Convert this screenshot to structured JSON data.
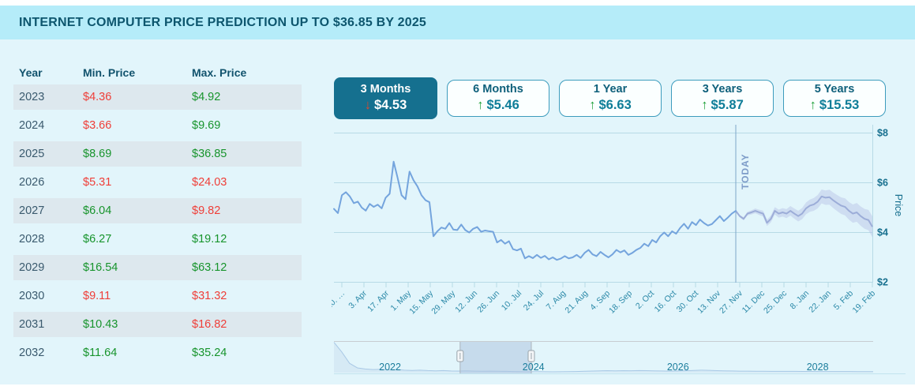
{
  "header": {
    "title": "INTERNET COMPUTER PRICE PREDICTION UP TO $36.85 BY 2025"
  },
  "table": {
    "columns": [
      "Year",
      "Min. Price",
      "Max. Price"
    ],
    "rows": [
      {
        "year": "2023",
        "min": "$4.36",
        "min_color": "red",
        "max": "$4.92",
        "max_color": "green"
      },
      {
        "year": "2024",
        "min": "$3.66",
        "min_color": "red",
        "max": "$9.69",
        "max_color": "green"
      },
      {
        "year": "2025",
        "min": "$8.69",
        "min_color": "green",
        "max": "$36.85",
        "max_color": "green"
      },
      {
        "year": "2026",
        "min": "$5.31",
        "min_color": "red",
        "max": "$24.03",
        "max_color": "red"
      },
      {
        "year": "2027",
        "min": "$6.04",
        "min_color": "green",
        "max": "$9.82",
        "max_color": "red"
      },
      {
        "year": "2028",
        "min": "$6.27",
        "min_color": "green",
        "max": "$19.12",
        "max_color": "green"
      },
      {
        "year": "2029",
        "min": "$16.54",
        "min_color": "green",
        "max": "$63.12",
        "max_color": "green"
      },
      {
        "year": "2030",
        "min": "$9.11",
        "min_color": "red",
        "max": "$31.32",
        "max_color": "red"
      },
      {
        "year": "2031",
        "min": "$10.43",
        "min_color": "green",
        "max": "$16.82",
        "max_color": "red"
      },
      {
        "year": "2032",
        "min": "$11.64",
        "min_color": "green",
        "max": "$35.24",
        "max_color": "green"
      }
    ]
  },
  "tabs": [
    {
      "label": "3 Months",
      "value": "$4.53",
      "direction": "down",
      "active": true
    },
    {
      "label": "6 Months",
      "value": "$5.46",
      "direction": "up",
      "active": false
    },
    {
      "label": "1 Year",
      "value": "$6.63",
      "direction": "up",
      "active": false
    },
    {
      "label": "3 Years",
      "value": "$5.87",
      "direction": "up",
      "active": false
    },
    {
      "label": "5 Years",
      "value": "$15.53",
      "direction": "up",
      "active": false
    }
  ],
  "chart_data": {
    "type": "line",
    "ylabel": "Price",
    "ylim": [
      1.8,
      8.3
    ],
    "grid": true,
    "y_tick_values": [
      2,
      4,
      6,
      8
    ],
    "y_tick_labels": [
      "$2",
      "$4",
      "$6",
      "$8"
    ],
    "x_tick_labels": [
      "20. …",
      "3. Apr",
      "17. Apr",
      "1. May",
      "15. May",
      "29. May",
      "12. Jun",
      "26. Jun",
      "10. Jul",
      "24. Jul",
      "7. Aug",
      "21. Aug",
      "4. Sep",
      "18. Sep",
      "2. Oct",
      "16. Oct",
      "30. Oct",
      "13. Nov",
      "27. Nov",
      "11. Dec",
      "25. Dec",
      "8. Jan",
      "22. Jan",
      "5. Feb",
      "19. Feb"
    ],
    "today": {
      "label": "TODAY",
      "position_fraction": 0.747
    },
    "series": [
      {
        "name": "historical",
        "values": [
          4.95,
          4.78,
          5.5,
          5.62,
          5.45,
          5.18,
          5.24,
          5.0,
          4.88,
          5.15,
          5.03,
          5.12,
          4.97,
          5.4,
          5.56,
          6.85,
          6.2,
          5.5,
          5.34,
          6.45,
          6.1,
          5.85,
          5.5,
          5.3,
          5.22,
          3.85,
          4.05,
          4.2,
          4.15,
          4.38,
          4.12,
          4.1,
          4.32,
          4.1,
          4.0,
          4.15,
          4.22,
          4.03,
          4.08,
          4.05,
          4.03,
          3.6,
          3.7,
          3.55,
          3.65,
          3.33,
          3.28,
          3.35,
          2.96,
          3.05,
          2.97,
          3.1,
          2.98,
          3.06,
          2.92,
          3.0,
          2.9,
          2.95,
          3.05,
          2.96,
          3.0,
          3.1,
          2.98,
          3.18,
          3.3,
          3.12,
          3.05,
          3.22,
          3.1,
          3.0,
          3.12,
          3.3,
          3.2,
          3.28,
          3.1,
          3.18,
          3.3,
          3.38,
          3.55,
          3.45,
          3.7,
          3.6,
          3.85,
          4.0,
          3.85,
          4.05,
          3.95,
          4.18,
          4.35,
          4.15,
          4.42,
          4.3,
          4.52,
          4.38,
          4.28,
          4.34,
          4.5,
          4.66,
          4.46,
          4.6,
          4.76,
          4.87
        ]
      },
      {
        "name": "forecast",
        "values": [
          4.87,
          4.66,
          4.55,
          4.76,
          4.81,
          4.87,
          4.81,
          4.76,
          4.39,
          4.55,
          4.87,
          4.76,
          4.81,
          4.76,
          4.87,
          4.76,
          4.66,
          4.76,
          4.97,
          5.08,
          5.13,
          5.24,
          5.45,
          5.4,
          5.42,
          5.29,
          5.18,
          5.08,
          5.03,
          4.87,
          4.76,
          4.81,
          4.66,
          4.55,
          4.5,
          4.23
        ],
        "band": {
          "start_halfwidth": 0.04,
          "end_halfwidth": 0.42
        }
      }
    ],
    "navigator": {
      "year_labels": [
        "2022",
        "2024",
        "2026",
        "2028"
      ],
      "year_positions": [
        0.104,
        0.37,
        0.638,
        0.897
      ],
      "selection": [
        0.234,
        0.366
      ],
      "values": [
        55,
        38,
        18,
        10,
        8,
        7,
        7.5,
        6.5,
        7,
        6,
        5.5,
        6,
        5.2,
        4.8,
        5.2,
        4.6,
        4.4,
        4.7,
        4.3,
        4.1,
        4.3,
        4.0,
        3.8,
        3.6,
        3.4,
        3.2,
        3.3,
        3.1,
        3.0,
        3.1,
        3.3,
        3.6,
        4.0,
        4.4,
        4.8,
        5.0,
        4.7,
        5.1,
        4.9,
        5.2,
        5.0,
        4.8,
        4.5,
        4.3,
        4.6,
        4.9,
        5.4,
        6.0,
        5.6,
        5.1,
        4.8,
        4.5,
        4.3,
        4.2,
        4.1,
        4.0,
        3.9,
        3.9,
        3.8,
        3.8,
        3.7,
        3.7,
        3.6,
        3.6,
        3.5,
        3.5,
        3.5,
        3.4,
        3.4,
        3.4
      ]
    }
  },
  "colors": {
    "header_band": "#b5ecf9",
    "title_text": "#0d566e",
    "page_bg": "#e2f5fb",
    "stripe": "#dde8ee",
    "red": "#ef3e38",
    "green": "#17942c",
    "tab_active_bg": "#15708f",
    "tab_border": "#3d9cbd",
    "line": "#74a4dd",
    "forecast_line": "#9cadd8",
    "band": "#b9c6e8",
    "grid": "#b7dae6",
    "axis_text": "#18708f",
    "tick_text": "#2b89a8",
    "today_line": "#7fa6c9",
    "today_text": "#7d9cc8",
    "nav_year_text": "#1b7d9c"
  }
}
